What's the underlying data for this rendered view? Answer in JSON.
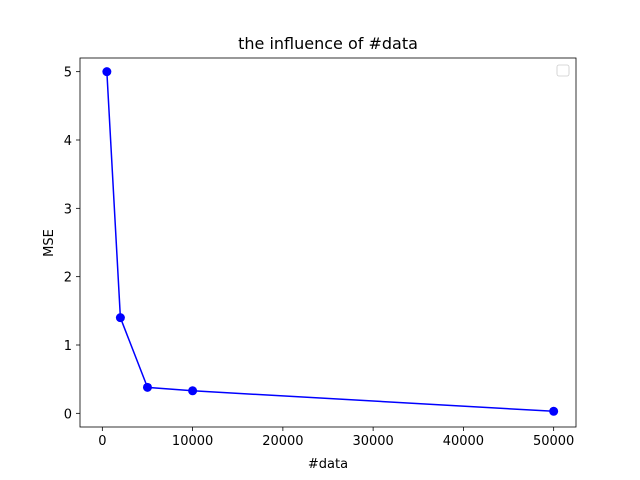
{
  "chart_data": {
    "type": "line",
    "title": "the influence of #data",
    "xlabel": "#data",
    "ylabel": "MSE",
    "xlim": [
      -2475,
      52475
    ],
    "ylim": [
      -0.2,
      5.2
    ],
    "x_ticks": [
      0,
      10000,
      20000,
      30000,
      40000,
      50000
    ],
    "y_ticks": [
      0,
      1,
      2,
      3,
      4,
      5
    ],
    "grid": false,
    "legend": "top-right",
    "legend_entries": [],
    "color": "#0000ff",
    "x": [
      500,
      2000,
      5000,
      10000,
      50000
    ],
    "y": [
      5.0,
      1.4,
      0.38,
      0.33,
      0.03
    ]
  }
}
